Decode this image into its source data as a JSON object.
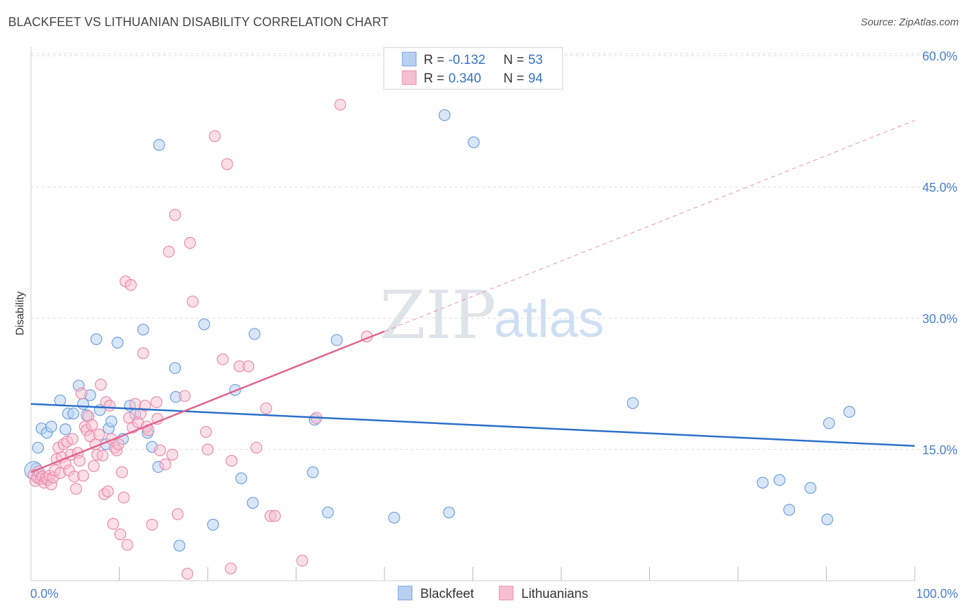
{
  "title": "BLACKFEET VS LITHUANIAN DISABILITY CORRELATION CHART",
  "source": "Source: ZipAtlas.com",
  "watermark": {
    "left": "ZIP",
    "right": "atlas"
  },
  "legend_top": [
    {
      "r_label": "R =",
      "r_value": "-0.132",
      "n_label": "N =",
      "n_value": "53"
    },
    {
      "r_label": "R =",
      "r_value": "0.340",
      "n_label": "N =",
      "n_value": "94"
    }
  ],
  "legend_bottom": [
    "Blackfeet",
    "Lithuanians"
  ],
  "colors": {
    "blackfeet_fill": "#b8d1f3",
    "blackfeet_stroke": "#6f9fdc",
    "blackfeet_line": "#2b6fca",
    "lithuanian_fill": "#f7bfd0",
    "lithuanian_stroke": "#e98aab",
    "lithuanian_line": "#e0628e",
    "tick": "#4a7fd0",
    "grid": "#dcdcdc"
  },
  "chart_data": {
    "type": "scatter",
    "title": "BLACKFEET VS LITHUANIAN DISABILITY CORRELATION CHART",
    "xlabel": "",
    "ylabel": "Disability",
    "xlim": [
      0,
      100
    ],
    "ylim": [
      0,
      63
    ],
    "x_tick_labels": [
      "0.0%",
      "100.0%"
    ],
    "y_ticks": [
      15,
      30,
      45,
      60
    ],
    "y_tick_labels": [
      "15.0%",
      "30.0%",
      "45.0%",
      "60.0%"
    ],
    "grid": "horizontal dashed",
    "legend": "top-center",
    "series": [
      {
        "name": "Blackfeet",
        "R": -0.132,
        "N": 53,
        "trend": {
          "x": [
            0,
            100
          ],
          "y": [
            20.2,
            15.4
          ]
        },
        "points": [
          [
            0.6,
            12.8
          ],
          [
            0.8,
            15.2
          ],
          [
            1.2,
            17.4
          ],
          [
            1.8,
            16.9
          ],
          [
            2.3,
            17.6
          ],
          [
            3.3,
            20.6
          ],
          [
            3.9,
            17.3
          ],
          [
            4.2,
            19.1
          ],
          [
            4.8,
            19.1
          ],
          [
            5.4,
            22.3
          ],
          [
            5.9,
            20.2
          ],
          [
            6.3,
            18.9
          ],
          [
            6.7,
            21.2
          ],
          [
            7.4,
            27.6
          ],
          [
            7.8,
            19.5
          ],
          [
            8.5,
            15.6
          ],
          [
            8.8,
            17.4
          ],
          [
            9.1,
            18.2
          ],
          [
            9.8,
            27.2
          ],
          [
            10.4,
            16.2
          ],
          [
            11.2,
            20.0
          ],
          [
            11.8,
            19.0
          ],
          [
            12.7,
            28.7
          ],
          [
            13.2,
            16.9
          ],
          [
            13.7,
            15.3
          ],
          [
            14.4,
            13.0
          ],
          [
            14.5,
            49.8
          ],
          [
            16.3,
            24.3
          ],
          [
            16.4,
            21.0
          ],
          [
            16.8,
            4.0
          ],
          [
            19.6,
            29.3
          ],
          [
            20.6,
            6.4
          ],
          [
            23.1,
            21.8
          ],
          [
            23.8,
            11.7
          ],
          [
            25.1,
            8.9
          ],
          [
            25.3,
            28.2
          ],
          [
            31.9,
            12.4
          ],
          [
            32.1,
            18.4
          ],
          [
            33.6,
            7.8
          ],
          [
            34.6,
            27.5
          ],
          [
            41.1,
            7.2
          ],
          [
            46.8,
            53.2
          ],
          [
            47.3,
            7.8
          ],
          [
            50.1,
            50.1
          ],
          [
            68.1,
            20.3
          ],
          [
            82.8,
            11.2
          ],
          [
            84.7,
            11.5
          ],
          [
            85.8,
            8.1
          ],
          [
            88.2,
            10.6
          ],
          [
            90.1,
            7.0
          ],
          [
            90.3,
            18.0
          ],
          [
            92.6,
            19.3
          ],
          [
            0.3,
            12.6
          ]
        ]
      },
      {
        "name": "Lithuanians",
        "R": 0.34,
        "N": 94,
        "trend": {
          "x": [
            0,
            40
          ],
          "y": [
            12.4,
            28.5
          ]
        },
        "trend_extension": {
          "x": [
            40,
            100
          ],
          "y": [
            28.5,
            52.6
          ]
        },
        "points": [
          [
            0.3,
            12.1
          ],
          [
            0.5,
            11.4
          ],
          [
            0.7,
            11.8
          ],
          [
            0.9,
            12.5
          ],
          [
            1.1,
            11.6
          ],
          [
            1.3,
            11.9
          ],
          [
            1.5,
            11.2
          ],
          [
            1.7,
            11.7
          ],
          [
            1.9,
            11.5
          ],
          [
            2.1,
            12.0
          ],
          [
            2.3,
            11.0
          ],
          [
            2.5,
            11.8
          ],
          [
            2.7,
            12.6
          ],
          [
            2.9,
            13.9
          ],
          [
            3.1,
            15.2
          ],
          [
            3.3,
            12.3
          ],
          [
            3.5,
            14.1
          ],
          [
            3.7,
            15.6
          ],
          [
            3.9,
            13.4
          ],
          [
            4.1,
            15.9
          ],
          [
            4.3,
            12.6
          ],
          [
            4.5,
            14.4
          ],
          [
            4.7,
            16.2
          ],
          [
            4.9,
            11.9
          ],
          [
            5.1,
            10.5
          ],
          [
            5.3,
            14.6
          ],
          [
            5.5,
            13.7
          ],
          [
            5.7,
            21.4
          ],
          [
            5.9,
            12.0
          ],
          [
            6.1,
            17.6
          ],
          [
            6.3,
            17.2
          ],
          [
            6.5,
            18.8
          ],
          [
            6.7,
            16.5
          ],
          [
            6.9,
            17.8
          ],
          [
            7.1,
            13.1
          ],
          [
            7.3,
            15.6
          ],
          [
            7.5,
            14.4
          ],
          [
            7.7,
            16.7
          ],
          [
            7.9,
            22.4
          ],
          [
            8.1,
            14.3
          ],
          [
            8.3,
            9.9
          ],
          [
            8.5,
            20.4
          ],
          [
            8.7,
            10.2
          ],
          [
            8.9,
            20.0
          ],
          [
            9.1,
            16.2
          ],
          [
            9.3,
            6.5
          ],
          [
            9.5,
            15.2
          ],
          [
            9.7,
            14.9
          ],
          [
            9.9,
            15.6
          ],
          [
            10.1,
            5.3
          ],
          [
            10.3,
            12.4
          ],
          [
            10.5,
            9.5
          ],
          [
            10.7,
            34.2
          ],
          [
            10.9,
            4.1
          ],
          [
            11.1,
            18.6
          ],
          [
            11.3,
            33.8
          ],
          [
            11.5,
            17.5
          ],
          [
            11.8,
            20.2
          ],
          [
            12.1,
            18.1
          ],
          [
            12.4,
            19.1
          ],
          [
            12.7,
            26.0
          ],
          [
            12.9,
            20.0
          ],
          [
            13.1,
            17.6
          ],
          [
            13.3,
            17.2
          ],
          [
            13.7,
            6.4
          ],
          [
            14.2,
            20.4
          ],
          [
            14.3,
            18.5
          ],
          [
            14.6,
            14.9
          ],
          [
            15.2,
            13.3
          ],
          [
            15.6,
            37.6
          ],
          [
            16.0,
            14.4
          ],
          [
            16.3,
            41.8
          ],
          [
            16.6,
            7.6
          ],
          [
            17.4,
            21.1
          ],
          [
            17.7,
            0.8
          ],
          [
            18.0,
            38.6
          ],
          [
            18.3,
            31.9
          ],
          [
            19.8,
            17.0
          ],
          [
            20.0,
            15.0
          ],
          [
            20.8,
            50.8
          ],
          [
            21.7,
            25.3
          ],
          [
            22.2,
            47.6
          ],
          [
            22.6,
            1.4
          ],
          [
            22.7,
            13.7
          ],
          [
            23.6,
            24.5
          ],
          [
            24.6,
            24.5
          ],
          [
            25.5,
            15.2
          ],
          [
            26.6,
            19.7
          ],
          [
            27.1,
            7.4
          ],
          [
            27.6,
            7.4
          ],
          [
            30.7,
            2.3
          ],
          [
            32.3,
            18.6
          ],
          [
            35.0,
            54.4
          ],
          [
            38.0,
            27.9
          ]
        ]
      }
    ]
  }
}
